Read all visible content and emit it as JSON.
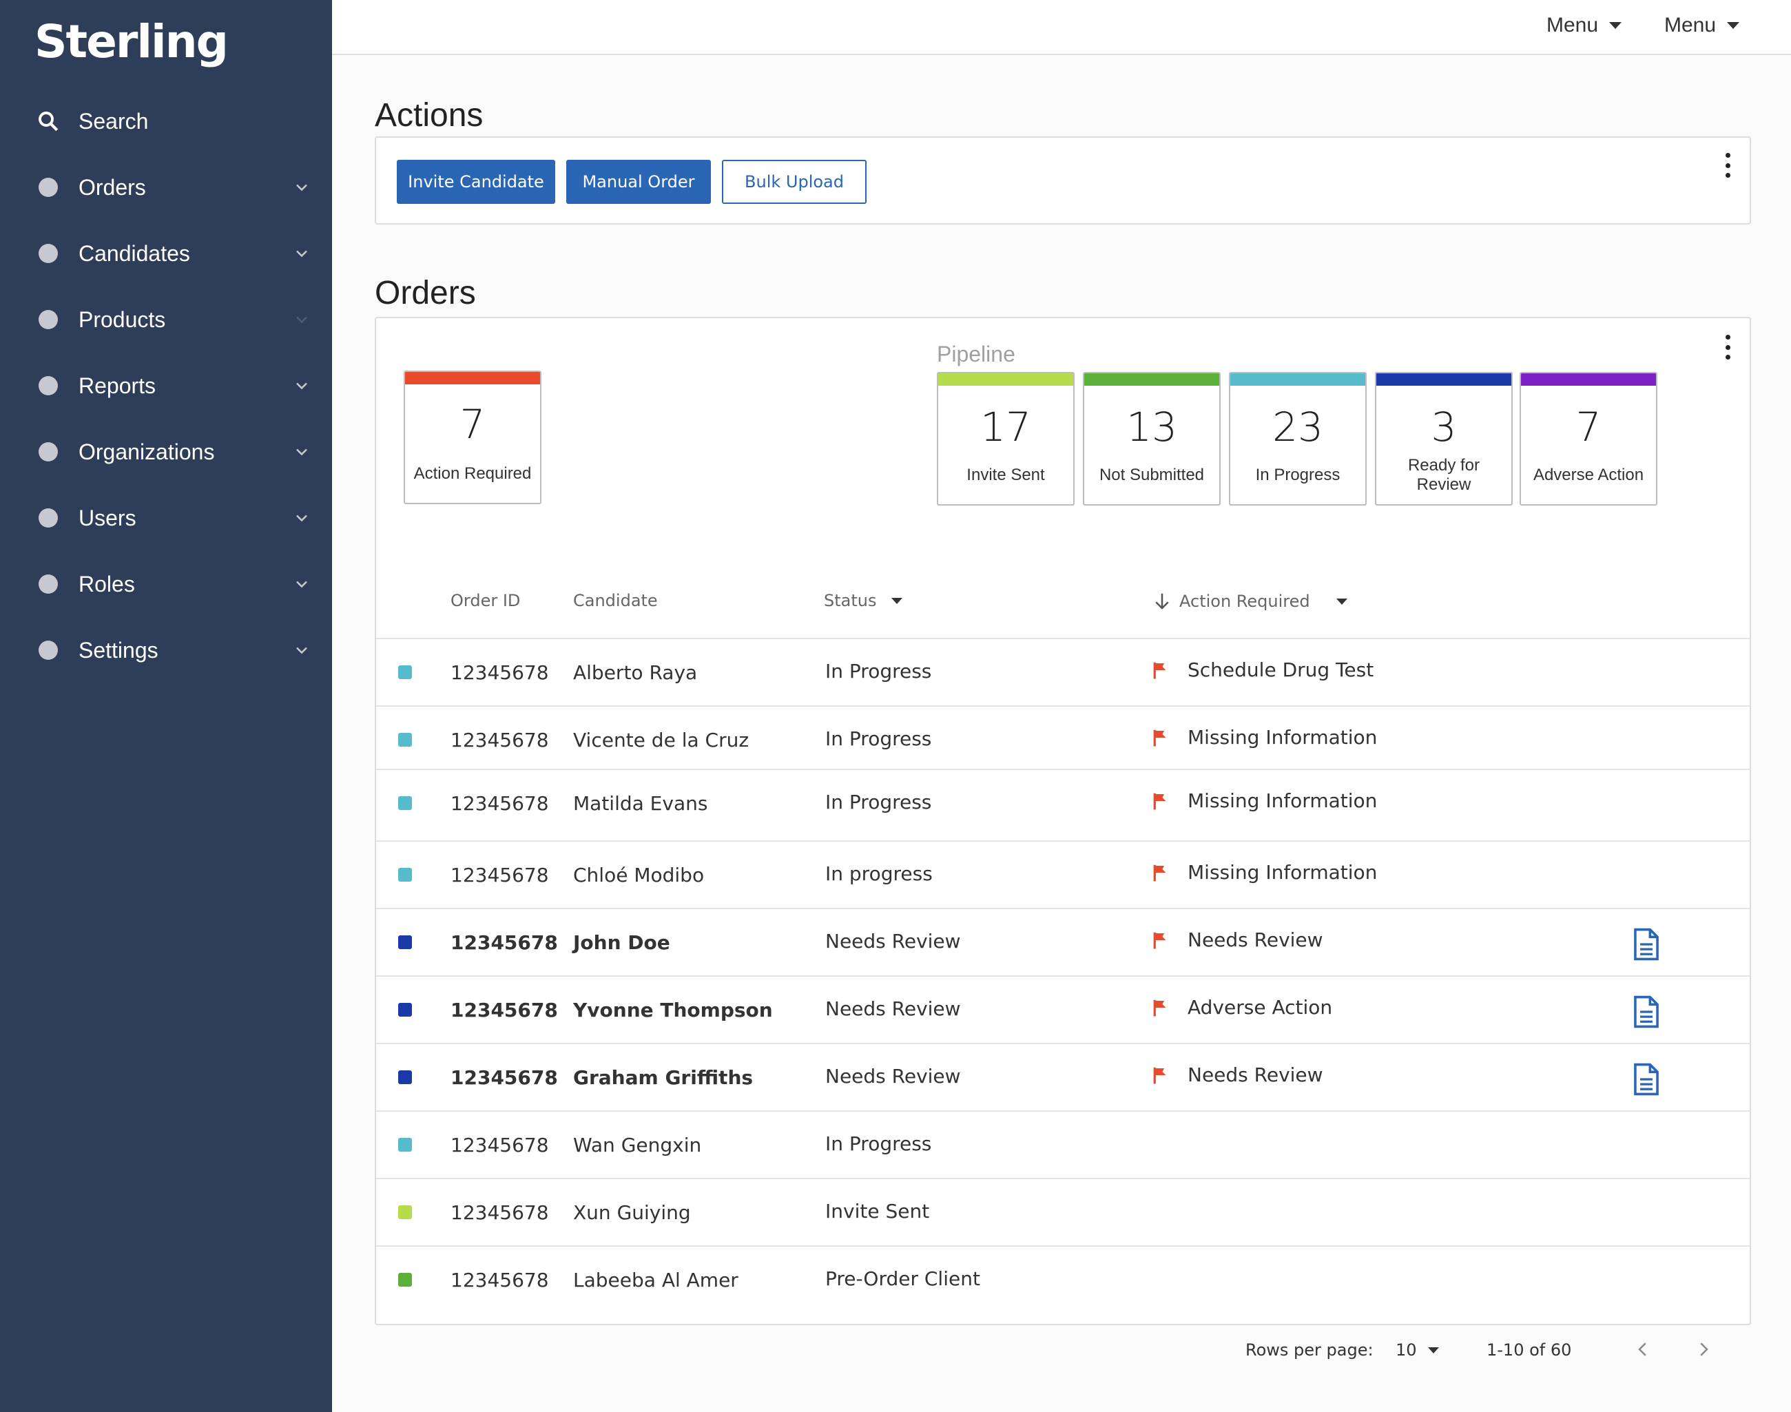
{
  "brand": {
    "name": "Sterling"
  },
  "sidebar": {
    "items": [
      {
        "label": "Search",
        "icon": "search-icon",
        "chevron": false
      },
      {
        "label": "Orders",
        "icon": "dot-icon",
        "chevron": true
      },
      {
        "label": "Candidates",
        "icon": "dot-icon",
        "chevron": true
      },
      {
        "label": "Products",
        "icon": "dot-icon",
        "chevron": true,
        "chevron_dim": true
      },
      {
        "label": "Reports",
        "icon": "dot-icon",
        "chevron": true
      },
      {
        "label": "Organizations",
        "icon": "dot-icon",
        "chevron": true
      },
      {
        "label": "Users",
        "icon": "dot-icon",
        "chevron": true
      },
      {
        "label": "Roles",
        "icon": "dot-icon",
        "chevron": true
      },
      {
        "label": "Settings",
        "icon": "dot-icon",
        "chevron": true
      }
    ]
  },
  "topbar": {
    "menus": [
      "Menu",
      "Menu"
    ]
  },
  "actions": {
    "title": "Actions",
    "buttons": [
      {
        "label": "Invite Candidate",
        "style": "primary"
      },
      {
        "label": "Manual Order",
        "style": "primary"
      },
      {
        "label": "Bulk Upload",
        "style": "outline"
      }
    ]
  },
  "orders": {
    "title": "Orders",
    "pipeline_label": "Pipeline",
    "action_tile": {
      "count": "7",
      "label": "Action Required",
      "color": "#e84a2c"
    },
    "pipeline": [
      {
        "count": "17",
        "label": "Invite Sent",
        "color": "#b5dc4a"
      },
      {
        "count": "13",
        "label": "Not Submitted",
        "color": "#5bb03a"
      },
      {
        "count": "23",
        "label": "In Progress",
        "color": "#56bccb"
      },
      {
        "count": "3",
        "label": "Ready for Review",
        "color": "#1a3aa8"
      },
      {
        "count": "7",
        "label": "Adverse Action",
        "color": "#7c22c4"
      }
    ],
    "columns": {
      "order_id": "Order ID",
      "candidate": "Candidate",
      "status": "Status",
      "action_required": "Action Required"
    },
    "rows": [
      {
        "id": "12345678",
        "candidate": "Alberto Raya",
        "status": "In Progress",
        "action": "Schedule Drug Test",
        "color": "#56bccb",
        "bold": false,
        "doc": false
      },
      {
        "id": "12345678",
        "candidate": "Vicente de la Cruz",
        "status": "In Progress",
        "action": "Missing Information",
        "color": "#56bccb",
        "bold": false,
        "doc": false
      },
      {
        "id": "12345678",
        "candidate": "Matilda Evans",
        "status": "In Progress",
        "action": "Missing Information",
        "color": "#56bccb",
        "bold": false,
        "doc": false
      },
      {
        "id": "12345678",
        "candidate": "Chloé Modibo",
        "status": "In progress",
        "action": "Missing Information",
        "color": "#56bccb",
        "bold": false,
        "doc": false
      },
      {
        "id": "12345678",
        "candidate": "John Doe",
        "status": "Needs Review",
        "action": "Needs Review",
        "color": "#1a3aa8",
        "bold": true,
        "doc": true
      },
      {
        "id": "12345678",
        "candidate": "Yvonne Thompson",
        "status": "Needs Review",
        "action": "Adverse Action",
        "color": "#1a3aa8",
        "bold": true,
        "doc": true
      },
      {
        "id": "12345678",
        "candidate": "Graham Griffiths",
        "status": "Needs Review",
        "action": "Needs Review",
        "color": "#1a3aa8",
        "bold": true,
        "doc": true
      },
      {
        "id": "12345678",
        "candidate": "Wan Gengxin",
        "status": "In Progress",
        "action": "",
        "color": "#56bccb",
        "bold": false,
        "doc": false
      },
      {
        "id": "12345678",
        "candidate": "Xun Guiying",
        "status": "Invite Sent",
        "action": "",
        "color": "#b5dc4a",
        "bold": false,
        "doc": false
      },
      {
        "id": "12345678",
        "candidate": "Labeeba Al Amer",
        "status": "Pre-Order Client",
        "action": "",
        "color": "#5bb03a",
        "bold": false,
        "doc": false
      }
    ]
  },
  "pagination": {
    "rows_per_page_label": "Rows per page:",
    "rows_per_page": "10",
    "range": "1-10 of 60"
  },
  "colors": {
    "sidebar": "#2e3e58",
    "accent": "#2a66b4",
    "flag": "#e84a2c"
  }
}
